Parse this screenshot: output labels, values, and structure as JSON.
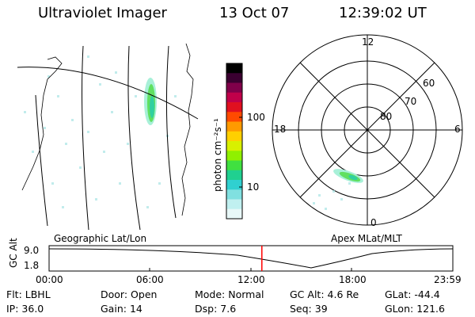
{
  "header": {
    "title": "Ultraviolet Imager",
    "date": "13 Oct 07",
    "time": "12:39:02 UT"
  },
  "colorbar": {
    "label": "photon cm⁻²s⁻¹",
    "ticks": [
      "100",
      "10"
    ],
    "colors": [
      "#000000",
      "#3a0030",
      "#80004a",
      "#c0004a",
      "#e01020",
      "#ff4a00",
      "#ff9a00",
      "#ffd000",
      "#d8f000",
      "#90f000",
      "#40e040",
      "#20d090",
      "#30d0d0",
      "#80e0e0",
      "#c0f0f0",
      "#e8f8f8"
    ]
  },
  "polar_plot": {
    "top_label": "12",
    "bottom_label": "0",
    "left_label": "18",
    "right_label": "6",
    "ring_labels": [
      "80",
      "70",
      "60"
    ]
  },
  "captions": {
    "left": "Geographic Lat/Lon",
    "right": "Apex MLat/MLT"
  },
  "timeline": {
    "ylabel": "GC Alt",
    "y_top": "9.0",
    "y_bottom": "1.8",
    "x_ticks": [
      "00:00",
      "06:00",
      "12:00",
      "18:00",
      "23:59"
    ],
    "current_time_fraction": 0.527,
    "marker_color": "#ff0000"
  },
  "info": {
    "row1": [
      {
        "label": "Flt:",
        "value": "LBHL"
      },
      {
        "label": "Door:",
        "value": "Open"
      },
      {
        "label": "Mode:",
        "value": "Normal"
      },
      {
        "label": "GC Alt:",
        "value": "4.6 Re"
      },
      {
        "label": "GLat:",
        "value": "-44.4"
      }
    ],
    "row2": [
      {
        "label": "IP:",
        "value": "36.0"
      },
      {
        "label": "Gain:",
        "value": "14"
      },
      {
        "label": "Dsp:",
        "value": "7.6"
      },
      {
        "label": "Seq:",
        "value": "39"
      },
      {
        "label": "GLon:",
        "value": "121.6"
      }
    ]
  }
}
